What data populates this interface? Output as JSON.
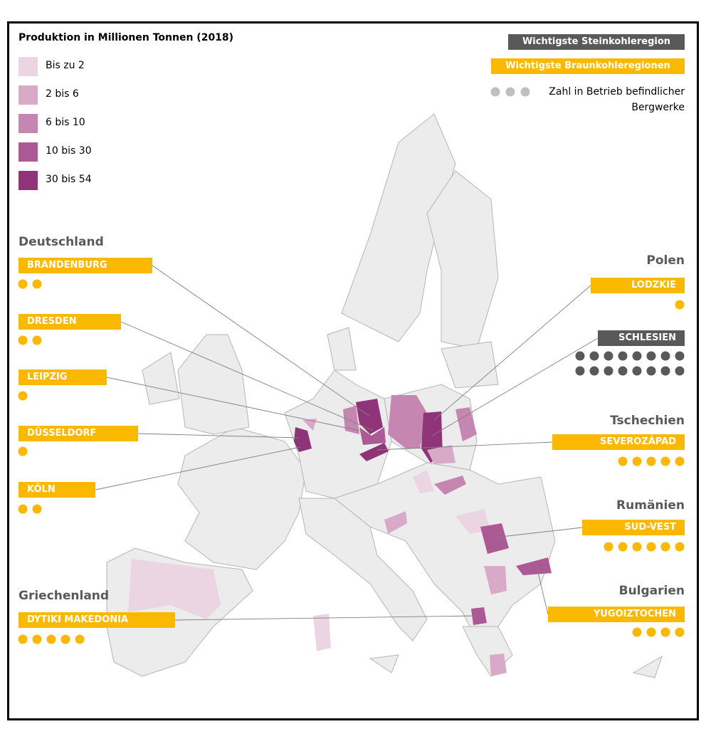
{
  "legend": {
    "title": "Produktion in Millionen Tonnen (2018)",
    "items": [
      {
        "label": "Bis zu 2",
        "color": "#ecd5e3"
      },
      {
        "label": "2 bis 6",
        "color": "#d9aac8"
      },
      {
        "label": "6 bis 10",
        "color": "#c586b2"
      },
      {
        "label": "10 bis 30",
        "color": "#ac5a95"
      },
      {
        "label": "30 bis 54",
        "color": "#8f3478"
      }
    ]
  },
  "key": {
    "hard_coal": {
      "label": "Wichtigste Steinkohleregion",
      "color": "#595959"
    },
    "lignite": {
      "label": "Wichtigste Braunkohleregionen",
      "color": "#fbb800"
    },
    "mines": {
      "label": "Zahl in Betrieb befindlicher Bergwerke",
      "color": "#bfbfbf"
    }
  },
  "countries": [
    {
      "name": "Deutschland",
      "regions": [
        {
          "name": "BRANDENBURG",
          "type": "lignite",
          "mines": 2
        },
        {
          "name": "DRESDEN",
          "type": "lignite",
          "mines": 2
        },
        {
          "name": "LEIPZIG",
          "type": "lignite",
          "mines": 1
        },
        {
          "name": "DÜSSELDORF",
          "type": "lignite",
          "mines": 1
        },
        {
          "name": "KÖLN",
          "type": "lignite",
          "mines": 2
        }
      ]
    },
    {
      "name": "Polen",
      "regions": [
        {
          "name": "LODZKIE",
          "type": "lignite",
          "mines": 1
        },
        {
          "name": "SCHLESIEN",
          "type": "hard_coal",
          "mines": 16
        }
      ]
    },
    {
      "name": "Tschechien",
      "regions": [
        {
          "name": "SEVEROZÁPAD",
          "type": "lignite",
          "mines": 5
        }
      ]
    },
    {
      "name": "Rumänien",
      "regions": [
        {
          "name": "SUD-VEST",
          "type": "lignite",
          "mines": 6
        }
      ]
    },
    {
      "name": "Bulgarien",
      "regions": [
        {
          "name": "YUGOIZTOCHEN",
          "type": "lignite",
          "mines": 4
        }
      ]
    },
    {
      "name": "Griechenland",
      "regions": [
        {
          "name": "DYTIKI MAKEDONIA",
          "type": "lignite",
          "mines": 5
        }
      ]
    }
  ]
}
